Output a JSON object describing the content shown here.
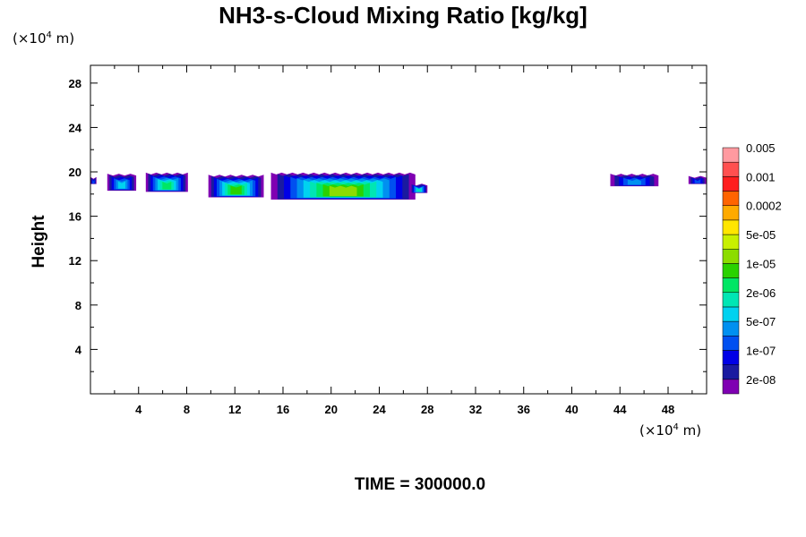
{
  "chart_data": {
    "type": "heatmap",
    "title": "NH3-s-Cloud Mixing Ratio [kg/kg]",
    "ylabel": "Height",
    "xlabel": "",
    "x_unit": {
      "prefix": "(×10",
      "exp": "4",
      "suffix": " m)"
    },
    "y_unit": {
      "prefix": "(×10",
      "exp": "4",
      "suffix": " m)"
    },
    "xlim": [
      0,
      51.2
    ],
    "ylim": [
      0,
      29.6
    ],
    "xticks": [
      4,
      8,
      12,
      16,
      20,
      24,
      28,
      32,
      36,
      40,
      44,
      48
    ],
    "yticks": [
      4,
      8,
      12,
      16,
      20,
      24,
      28
    ],
    "time_label": "TIME = 300000.0",
    "colorbar": {
      "colors": [
        "#7f00b2",
        "#1a1aa0",
        "#0000e6",
        "#0050f0",
        "#0090f0",
        "#00d2f0",
        "#00e6b4",
        "#00e664",
        "#2ad200",
        "#8cdc00",
        "#c8f000",
        "#ffe600",
        "#ffaa00",
        "#ff6400",
        "#ff1e1e",
        "#ff5050",
        "#ff9aa0"
      ],
      "labels": [
        "2e-08",
        "1e-07",
        "5e-07",
        "2e-06",
        "1e-05",
        "5e-05",
        "0.0002",
        "0.001",
        "0.005"
      ]
    },
    "clouds": [
      {
        "x0": 0.0,
        "x1": 0.5,
        "bottom": 18.9,
        "top": 19.5,
        "level": 3
      },
      {
        "x0": 1.4,
        "x1": 3.8,
        "bottom": 18.3,
        "top": 19.8,
        "level": 5
      },
      {
        "x0": 4.6,
        "x1": 8.1,
        "bottom": 18.2,
        "top": 19.9,
        "level": 7
      },
      {
        "x0": 9.8,
        "x1": 14.4,
        "bottom": 17.7,
        "top": 19.7,
        "level": 8
      },
      {
        "x0": 15.0,
        "x1": 27.0,
        "bottom": 17.5,
        "top": 19.9,
        "level": 9
      },
      {
        "x0": 26.6,
        "x1": 28.0,
        "bottom": 18.1,
        "top": 18.9,
        "level": 6
      },
      {
        "x0": 43.2,
        "x1": 47.2,
        "bottom": 18.7,
        "top": 19.8,
        "level": 4
      },
      {
        "x0": 49.7,
        "x1": 51.2,
        "bottom": 18.9,
        "top": 19.6,
        "level": 3
      }
    ]
  }
}
